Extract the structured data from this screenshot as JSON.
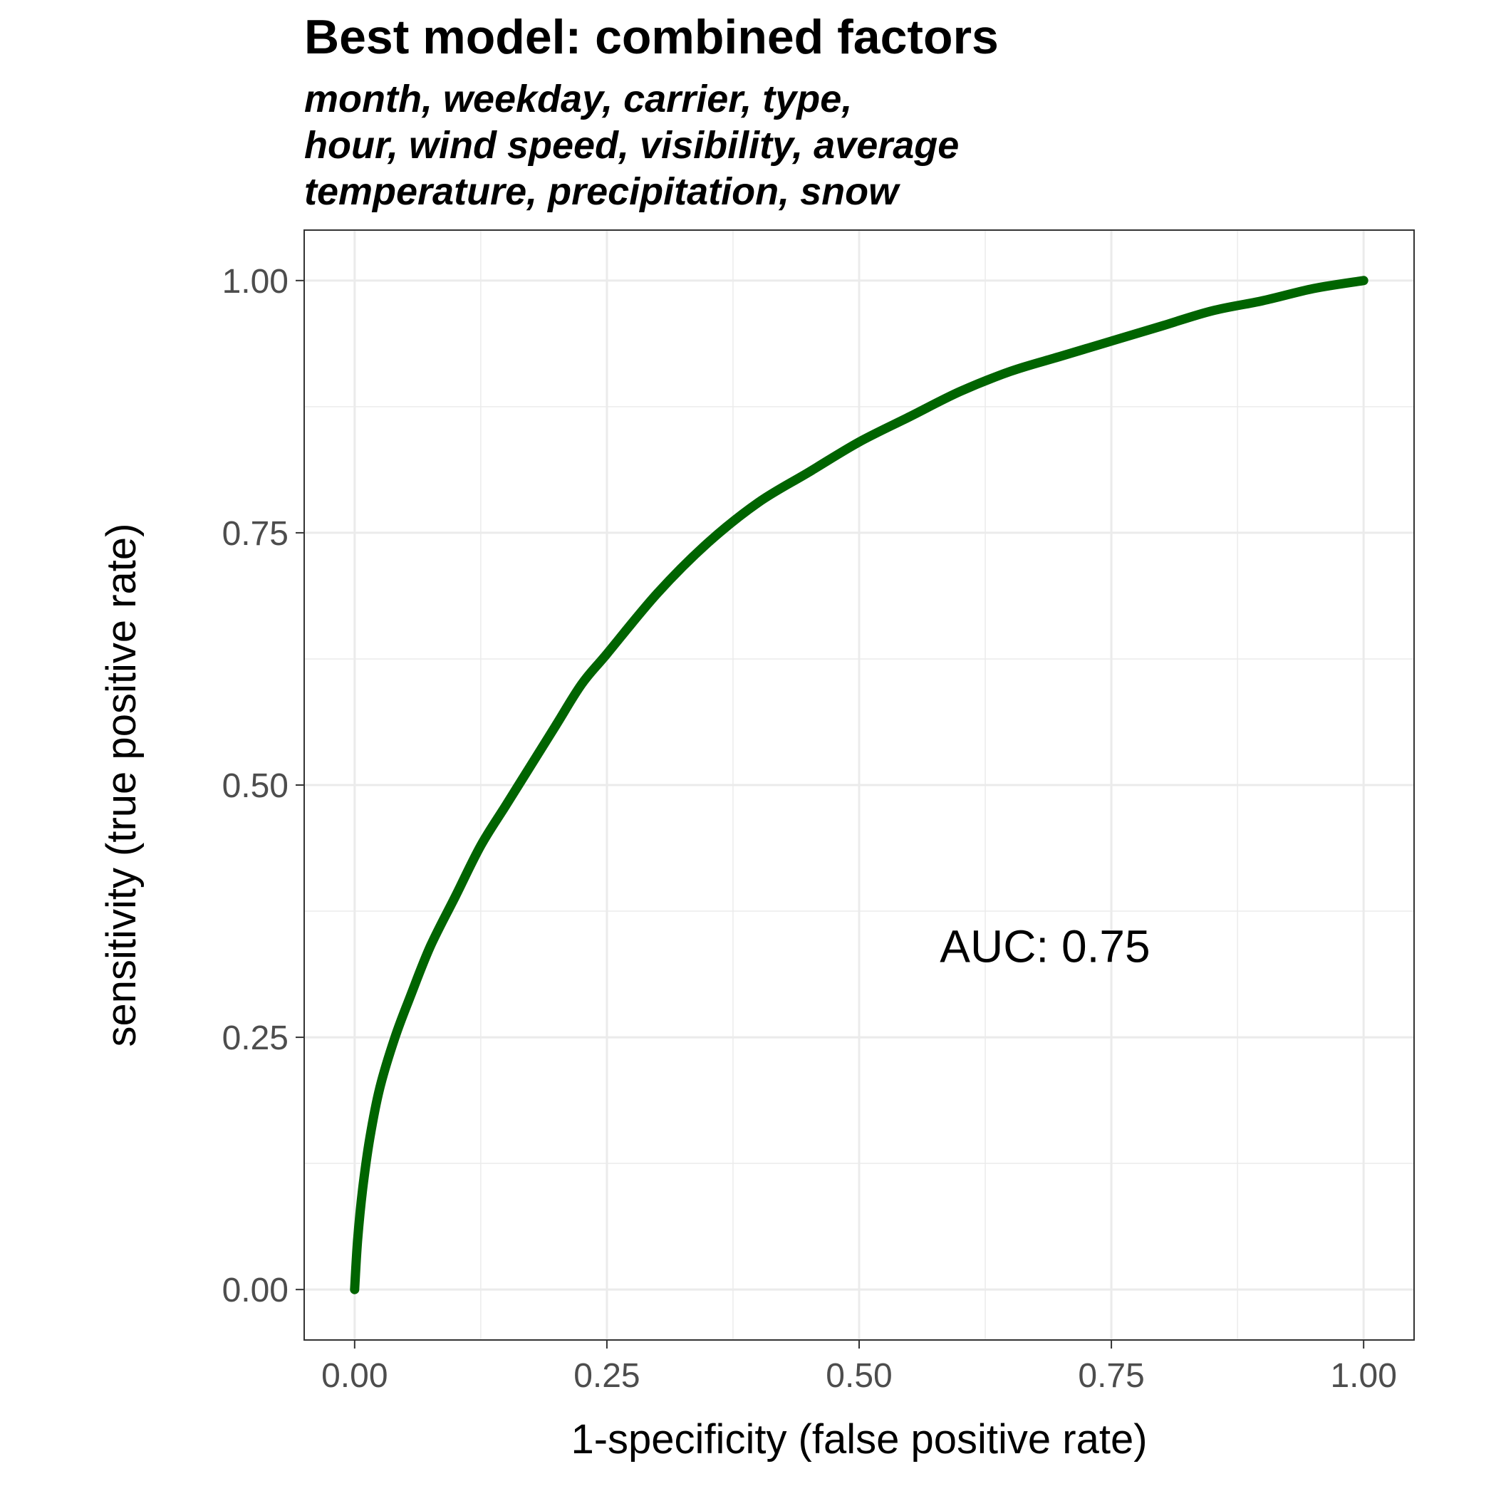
{
  "chart_data": {
    "type": "line",
    "title": "Best model: combined factors",
    "subtitle_lines": [
      "month, weekday, carrier, type,",
      "hour, wind speed, visibility, average",
      "temperature, precipitation, snow"
    ],
    "xlabel": "1-specificity (false positive rate)",
    "ylabel": "sensitivity (true positive rate)",
    "xlim": [
      0,
      1
    ],
    "ylim": [
      0,
      1
    ],
    "x_ticks": [
      0,
      0.25,
      0.5,
      0.75,
      1
    ],
    "y_ticks": [
      0,
      0.25,
      0.5,
      0.75,
      1
    ],
    "x_tick_labels": [
      "0.00",
      "0.25",
      "0.50",
      "0.75",
      "1.00"
    ],
    "y_tick_labels": [
      "0.00",
      "0.25",
      "0.50",
      "0.75",
      "1.00"
    ],
    "grid": true,
    "series": [
      {
        "color": "#006400",
        "x": [
          0.0,
          0.003,
          0.008,
          0.015,
          0.025,
          0.04,
          0.055,
          0.075,
          0.1,
          0.125,
          0.15,
          0.175,
          0.2,
          0.225,
          0.25,
          0.3,
          0.35,
          0.4,
          0.45,
          0.5,
          0.55,
          0.6,
          0.65,
          0.7,
          0.75,
          0.8,
          0.85,
          0.9,
          0.95,
          1.0
        ],
        "y": [
          0.0,
          0.05,
          0.1,
          0.15,
          0.2,
          0.25,
          0.29,
          0.34,
          0.39,
          0.44,
          0.48,
          0.52,
          0.56,
          0.6,
          0.63,
          0.69,
          0.74,
          0.78,
          0.81,
          0.84,
          0.865,
          0.89,
          0.91,
          0.925,
          0.94,
          0.955,
          0.97,
          0.98,
          0.992,
          1.0
        ]
      }
    ],
    "annotations": [
      {
        "text": "AUC: 0.75",
        "x": 0.58,
        "y": 0.34
      }
    ]
  }
}
